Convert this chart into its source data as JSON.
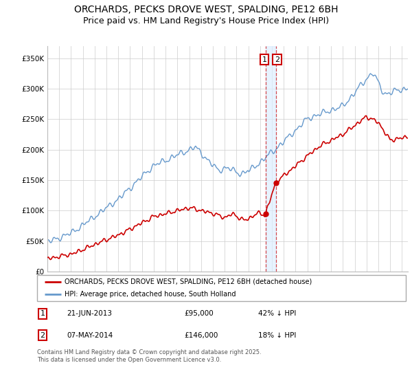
{
  "title": "ORCHARDS, PECKS DROVE WEST, SPALDING, PE12 6BH",
  "subtitle": "Price paid vs. HM Land Registry's House Price Index (HPI)",
  "ylim": [
    0,
    370000
  ],
  "yticks": [
    0,
    50000,
    100000,
    150000,
    200000,
    250000,
    300000,
    350000
  ],
  "ytick_labels": [
    "£0",
    "£50K",
    "£100K",
    "£150K",
    "£200K",
    "£250K",
    "£300K",
    "£350K"
  ],
  "xlim_start": 1995.0,
  "xlim_end": 2025.5,
  "background_color": "#ffffff",
  "grid_color": "#cccccc",
  "title_fontsize": 10,
  "subtitle_fontsize": 9,
  "sale1_date": "21-JUN-2013",
  "sale1_price": "£95,000",
  "sale1_hpi": "42% ↓ HPI",
  "sale1_x": 2013.47,
  "sale1_y": 95000,
  "sale2_date": "07-MAY-2014",
  "sale2_price": "£146,000",
  "sale2_hpi": "18% ↓ HPI",
  "sale2_x": 2014.35,
  "sale2_y": 146000,
  "legend_label1": "ORCHARDS, PECKS DROVE WEST, SPALDING, PE12 6BH (detached house)",
  "legend_label2": "HPI: Average price, detached house, South Holland",
  "footer": "Contains HM Land Registry data © Crown copyright and database right 2025.\nThis data is licensed under the Open Government Licence v3.0.",
  "red_color": "#cc0000",
  "blue_color": "#6699cc",
  "shade_color": "#ddeeff"
}
